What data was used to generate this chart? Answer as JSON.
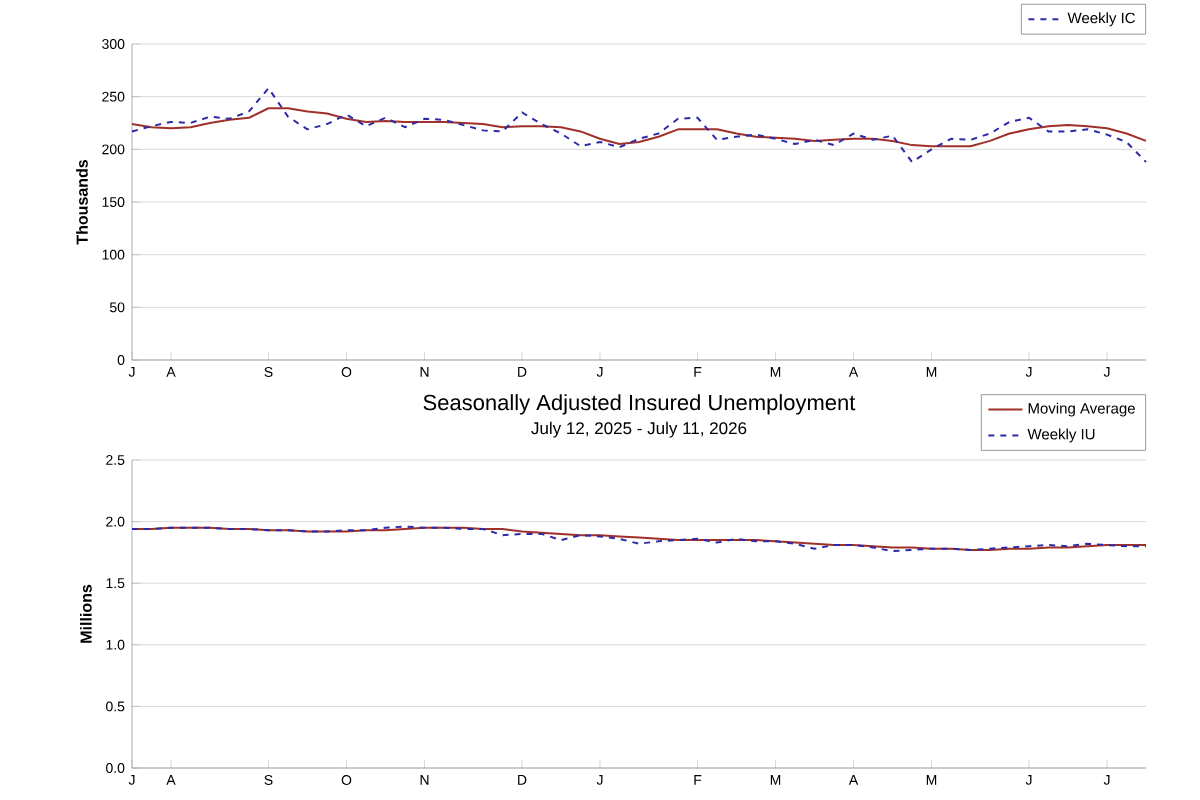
{
  "chart_data": [
    {
      "type": "line",
      "ylabel": "Thousands",
      "legend": "top right",
      "grid": "y",
      "marker": "none",
      "categories": [
        "J",
        null,
        "A",
        null,
        null,
        null,
        null,
        "S",
        null,
        null,
        null,
        "O",
        null,
        null,
        null,
        "N",
        null,
        null,
        null,
        null,
        "D",
        null,
        null,
        null,
        "J",
        null,
        null,
        null,
        null,
        "F",
        null,
        null,
        null,
        "M",
        null,
        null,
        null,
        "A",
        null,
        null,
        null,
        "M",
        null,
        null,
        null,
        null,
        "J",
        null,
        null,
        null,
        "J",
        null,
        null
      ],
      "ylim": [
        0,
        300
      ],
      "yticks": [
        0,
        50,
        100,
        150,
        200,
        250,
        300
      ],
      "series": [
        {
          "color": "#a0302a",
          "line_style": "solid",
          "values": [
            224,
            221,
            220,
            221,
            225,
            228,
            230,
            239,
            239,
            236,
            234,
            229,
            226,
            227,
            226,
            226,
            226,
            225,
            224,
            221,
            222,
            222,
            221,
            217,
            210,
            205,
            207,
            212,
            219,
            219,
            219,
            215,
            212,
            211,
            210,
            208,
            209,
            210,
            210,
            208,
            204,
            203,
            203,
            203,
            208,
            215,
            219,
            222,
            223,
            222,
            220,
            215,
            208
          ]
        },
        {
          "name": "Weekly IC",
          "color": "#2b2ba8",
          "line_style": "dashed",
          "values": [
            217,
            222,
            226,
            225,
            231,
            229,
            236,
            258,
            231,
            219,
            224,
            233,
            222,
            230,
            221,
            229,
            228,
            223,
            218,
            217,
            235,
            224,
            215,
            203,
            207,
            202,
            210,
            215,
            229,
            230,
            209,
            212,
            214,
            210,
            205,
            209,
            204,
            215,
            209,
            213,
            188,
            200,
            210,
            209,
            215,
            226,
            230,
            217,
            217,
            219,
            214,
            207,
            188
          ]
        }
      ]
    },
    {
      "type": "line",
      "title": "Seasonally Adjusted Insured Unemployment",
      "subtitle": "July 12, 2025 - July 11, 2026",
      "ylabel": "Millions",
      "legend": "top right",
      "grid": "y",
      "marker": "none",
      "categories": [
        "J",
        null,
        "A",
        null,
        null,
        null,
        null,
        "S",
        null,
        null,
        null,
        "O",
        null,
        null,
        null,
        "N",
        null,
        null,
        null,
        null,
        "D",
        null,
        null,
        null,
        "J",
        null,
        null,
        null,
        null,
        "F",
        null,
        null,
        null,
        "M",
        null,
        null,
        null,
        "A",
        null,
        null,
        null,
        "M",
        null,
        null,
        null,
        null,
        "J",
        null,
        null,
        null,
        "J",
        null,
        null
      ],
      "ylim": [
        0,
        2.5
      ],
      "yticks": [
        {
          "value": 0,
          "label": "0.0"
        },
        {
          "value": 0.5,
          "label": "0.5"
        },
        {
          "value": 1,
          "label": "1.0"
        },
        {
          "value": 1.5,
          "label": "1.5"
        },
        {
          "value": 2,
          "label": "2.0"
        },
        {
          "value": 2.5,
          "label": "2.5"
        }
      ],
      "series": [
        {
          "name": "Moving Average",
          "color": "#a0302a",
          "line_style": "solid",
          "values": [
            1.94,
            1.94,
            1.95,
            1.95,
            1.95,
            1.94,
            1.94,
            1.93,
            1.93,
            1.92,
            1.92,
            1.92,
            1.93,
            1.93,
            1.94,
            1.95,
            1.95,
            1.95,
            1.94,
            1.94,
            1.92,
            1.91,
            1.9,
            1.89,
            1.89,
            1.88,
            1.87,
            1.86,
            1.85,
            1.85,
            1.85,
            1.85,
            1.85,
            1.84,
            1.83,
            1.82,
            1.81,
            1.81,
            1.8,
            1.79,
            1.79,
            1.78,
            1.78,
            1.77,
            1.77,
            1.78,
            1.78,
            1.79,
            1.79,
            1.8,
            1.81,
            1.81,
            1.81
          ]
        },
        {
          "name": "Weekly IU",
          "color": "#2b2ba8",
          "line_style": "dashed",
          "values": [
            1.94,
            1.94,
            1.95,
            1.95,
            1.95,
            1.94,
            1.94,
            1.93,
            1.93,
            1.92,
            1.92,
            1.93,
            1.93,
            1.95,
            1.96,
            1.95,
            1.95,
            1.94,
            1.94,
            1.89,
            1.9,
            1.9,
            1.85,
            1.89,
            1.88,
            1.86,
            1.82,
            1.84,
            1.85,
            1.86,
            1.83,
            1.86,
            1.84,
            1.84,
            1.82,
            1.78,
            1.81,
            1.81,
            1.79,
            1.76,
            1.77,
            1.78,
            1.78,
            1.77,
            1.78,
            1.79,
            1.8,
            1.81,
            1.8,
            1.82,
            1.81,
            1.8,
            1.8
          ]
        }
      ]
    }
  ]
}
